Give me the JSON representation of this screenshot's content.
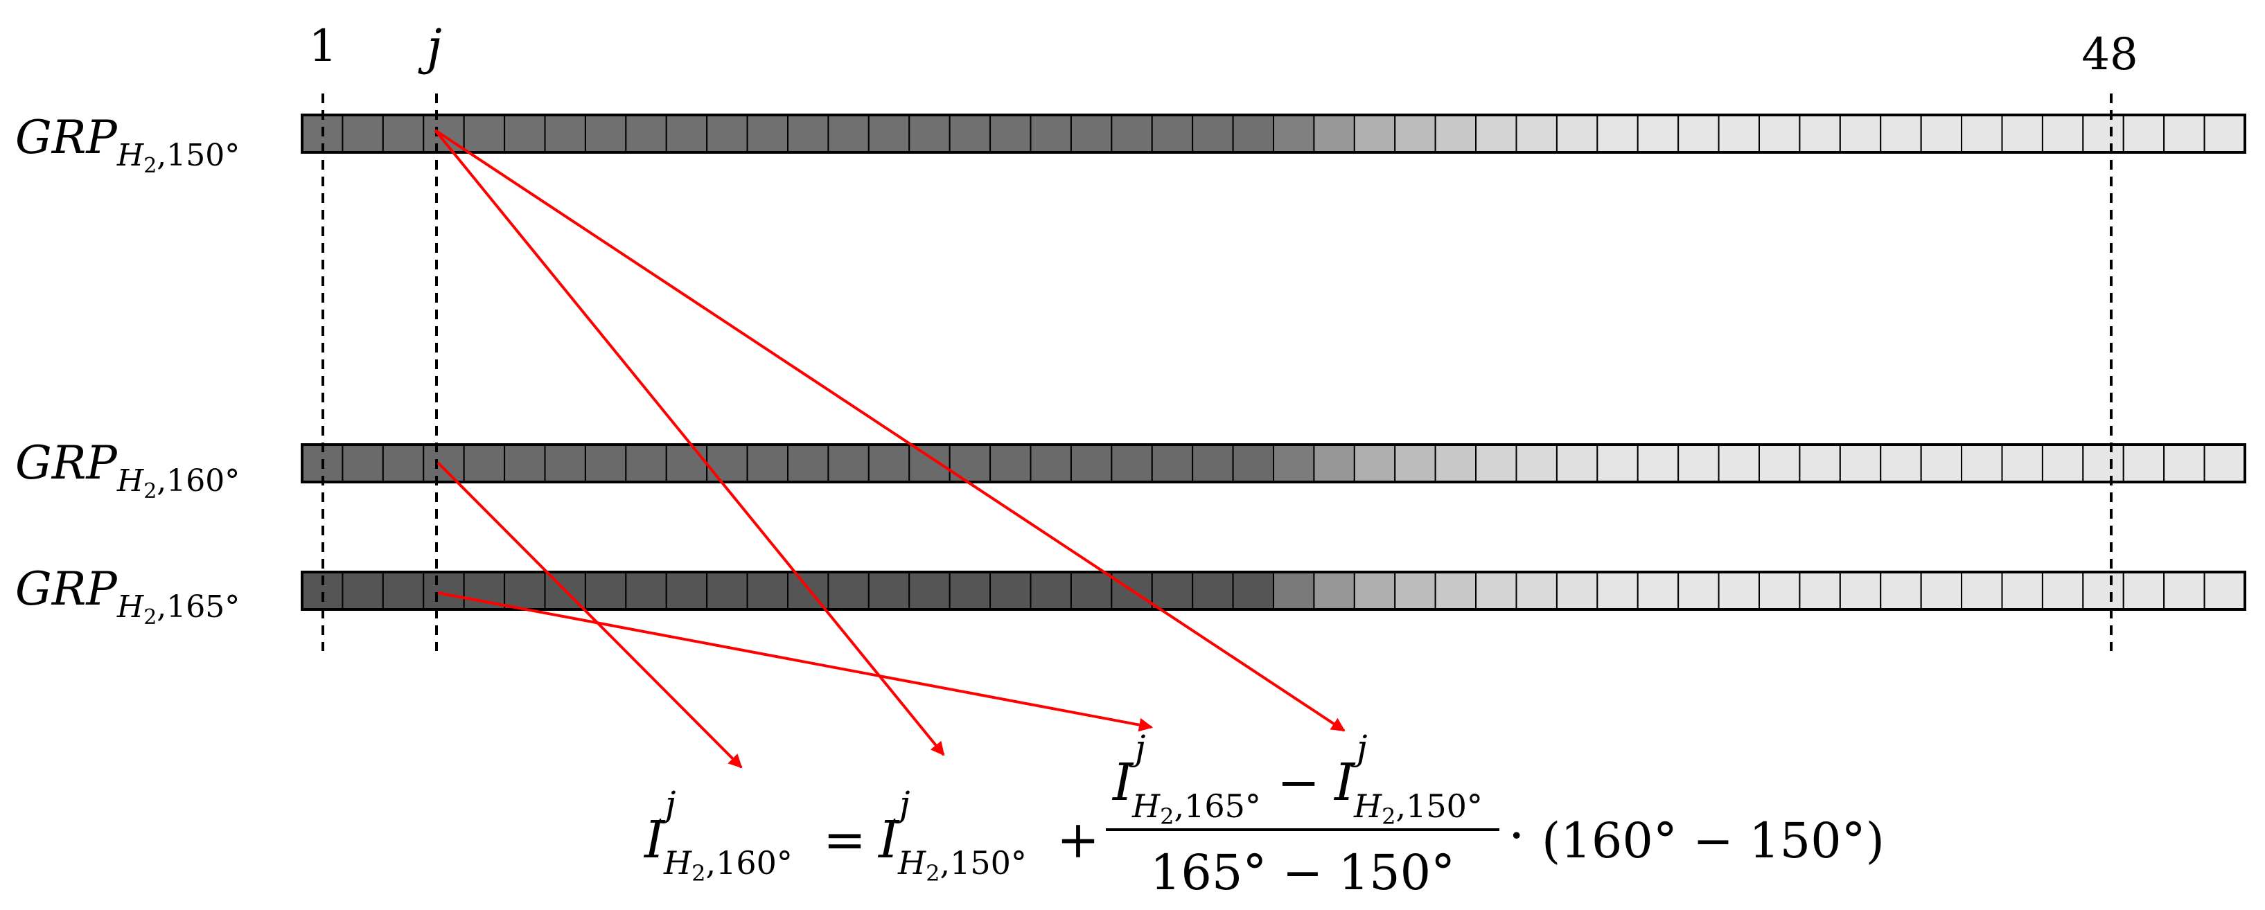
{
  "markers": {
    "first": "1",
    "j": "j",
    "last": "48"
  },
  "num_cells": 48,
  "rows": [
    {
      "label_main": "GRP",
      "label_sub_base": "H",
      "label_sub_index": "2",
      "label_angle": ",150°",
      "cell_colors": [
        "#707070",
        "#707070",
        "#707070",
        "#707070",
        "#707070",
        "#707070",
        "#707070",
        "#707070",
        "#707070",
        "#707070",
        "#707070",
        "#707070",
        "#707070",
        "#707070",
        "#707070",
        "#707070",
        "#707070",
        "#707070",
        "#707070",
        "#707070",
        "#707070",
        "#707070",
        "#707070",
        "#707070",
        "#808080",
        "#989898",
        "#b0b0b0",
        "#bcbcbc",
        "#c8c8c8",
        "#d4d4d4",
        "#dadada",
        "#e0e0e0",
        "#e4e4e4",
        "#e6e6e6",
        "#e6e6e6",
        "#e6e6e6",
        "#e6e6e6",
        "#e6e6e6",
        "#e6e6e6",
        "#e6e6e6",
        "#e6e6e6",
        "#e6e6e6",
        "#e6e6e6",
        "#e6e6e6",
        "#e6e6e6",
        "#e6e6e6",
        "#e6e6e6",
        "#e6e6e6"
      ]
    },
    {
      "label_main": "GRP",
      "label_sub_base": "H",
      "label_sub_index": "2",
      "label_angle": ",160°",
      "cell_colors": [
        "#6a6a6a",
        "#6a6a6a",
        "#6a6a6a",
        "#6a6a6a",
        "#6a6a6a",
        "#6a6a6a",
        "#6a6a6a",
        "#6a6a6a",
        "#6a6a6a",
        "#6a6a6a",
        "#6a6a6a",
        "#6a6a6a",
        "#6a6a6a",
        "#6a6a6a",
        "#6a6a6a",
        "#6a6a6a",
        "#6a6a6a",
        "#6a6a6a",
        "#6a6a6a",
        "#6a6a6a",
        "#6a6a6a",
        "#6a6a6a",
        "#6a6a6a",
        "#6a6a6a",
        "#7c7c7c",
        "#969696",
        "#aeaeae",
        "#bcbcbc",
        "#c8c8c8",
        "#d4d4d4",
        "#dadada",
        "#e0e0e0",
        "#e4e4e4",
        "#e6e6e6",
        "#e6e6e6",
        "#e6e6e6",
        "#e6e6e6",
        "#e6e6e6",
        "#e6e6e6",
        "#e6e6e6",
        "#e6e6e6",
        "#e6e6e6",
        "#e6e6e6",
        "#e6e6e6",
        "#e6e6e6",
        "#e6e6e6",
        "#e6e6e6",
        "#e6e6e6"
      ]
    },
    {
      "label_main": "GRP",
      "label_sub_base": "H",
      "label_sub_index": "2",
      "label_angle": ",165°",
      "cell_colors": [
        "#555555",
        "#555555",
        "#555555",
        "#555555",
        "#555555",
        "#555555",
        "#555555",
        "#555555",
        "#555555",
        "#555555",
        "#555555",
        "#555555",
        "#555555",
        "#555555",
        "#555555",
        "#555555",
        "#555555",
        "#555555",
        "#555555",
        "#555555",
        "#555555",
        "#555555",
        "#555555",
        "#555555",
        "#7a7a7a",
        "#969696",
        "#aeaeae",
        "#bcbcbc",
        "#c8c8c8",
        "#d4d4d4",
        "#dadada",
        "#e0e0e0",
        "#e4e4e4",
        "#e6e6e6",
        "#e6e6e6",
        "#e6e6e6",
        "#e6e6e6",
        "#e6e6e6",
        "#e6e6e6",
        "#e6e6e6",
        "#e6e6e6",
        "#e6e6e6",
        "#e6e6e6",
        "#e6e6e6",
        "#e6e6e6",
        "#e6e6e6",
        "#e6e6e6",
        "#e6e6e6"
      ]
    }
  ],
  "arrow_color": "#ff0000",
  "formula": {
    "lhs_var": "I",
    "lhs_sup": "j",
    "lhs_sub_base": "H",
    "lhs_sub_index": "2",
    "lhs_sub_angle": ",160°",
    "equals": "=",
    "t1_var": "I",
    "t1_sup": "j",
    "t1_sub_base": "H",
    "t1_sub_index": "2",
    "t1_sub_angle": ",150°",
    "plus": "+",
    "num_a_var": "I",
    "num_a_sup": "j",
    "num_a_sub_base": "H",
    "num_a_sub_index": "2",
    "num_a_sub_angle": ",165°",
    "num_minus": "−",
    "num_b_var": "I",
    "num_b_sup": "j",
    "num_b_sub_base": "H",
    "num_b_sub_index": "2",
    "num_b_sub_angle": ",150°",
    "denominator": "165° − 150°",
    "dot": "·",
    "tail": "(160° − 150°)"
  }
}
